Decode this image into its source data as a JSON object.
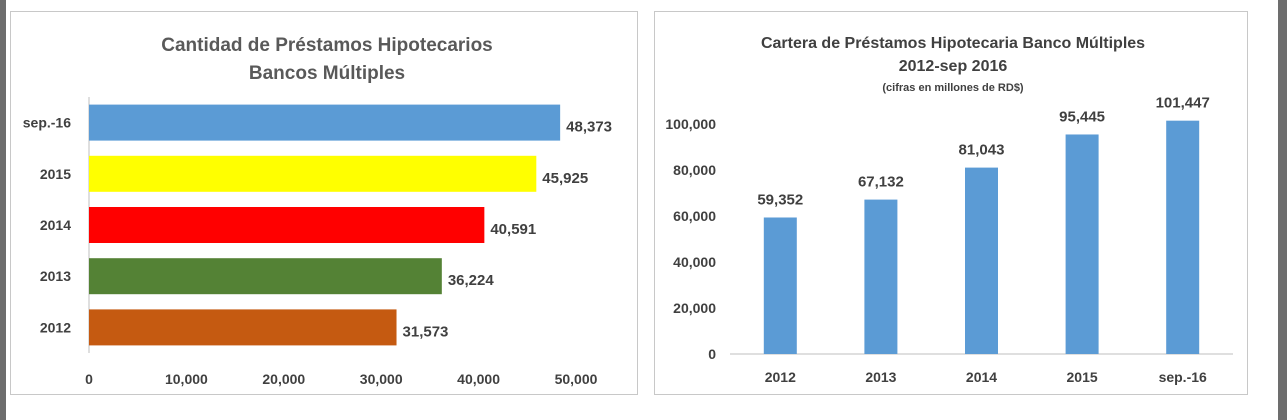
{
  "chart_data": [
    {
      "type": "bar",
      "orientation": "horizontal",
      "title": "Cantidad de Préstamos Hipotecarios",
      "subtitle": "Bancos Múltiples",
      "categories": [
        "sep.-16",
        "2015",
        "2014",
        "2013",
        "2012"
      ],
      "values": [
        48373,
        45925,
        40591,
        36224,
        31573
      ],
      "value_labels": [
        "48,373",
        "45,925",
        "40,591",
        "36,224",
        "31,573"
      ],
      "bar_colors": [
        "#5b9bd5",
        "#ffff00",
        "#ff0000",
        "#548235",
        "#c55a11"
      ],
      "xlim": [
        0,
        50000
      ],
      "x_ticks": [
        0,
        10000,
        20000,
        30000,
        40000,
        50000
      ],
      "x_tick_labels": [
        "0",
        "10,000",
        "20,000",
        "30,000",
        "40,000",
        "50,000"
      ],
      "grid": false,
      "legend": "none"
    },
    {
      "type": "bar",
      "title": "Cartera de Préstamos Hipotecaria Banco Múltiples",
      "subtitle": "2012-sep 2016",
      "note": "(cifras en millones de RD$)",
      "categories": [
        "2012",
        "2013",
        "2014",
        "2015",
        "sep.-16"
      ],
      "values": [
        59352,
        67132,
        81043,
        95445,
        101447
      ],
      "value_labels": [
        "59,352",
        "67,132",
        "81,043",
        "95,445",
        "101,447"
      ],
      "bar_color": "#5b9bd5",
      "ylim": [
        0,
        100000
      ],
      "y_ticks": [
        0,
        20000,
        40000,
        60000,
        80000,
        100000
      ],
      "y_tick_labels": [
        "0",
        "20,000",
        "40,000",
        "60,000",
        "80,000",
        "100,000"
      ],
      "grid": false,
      "legend": "none"
    }
  ]
}
